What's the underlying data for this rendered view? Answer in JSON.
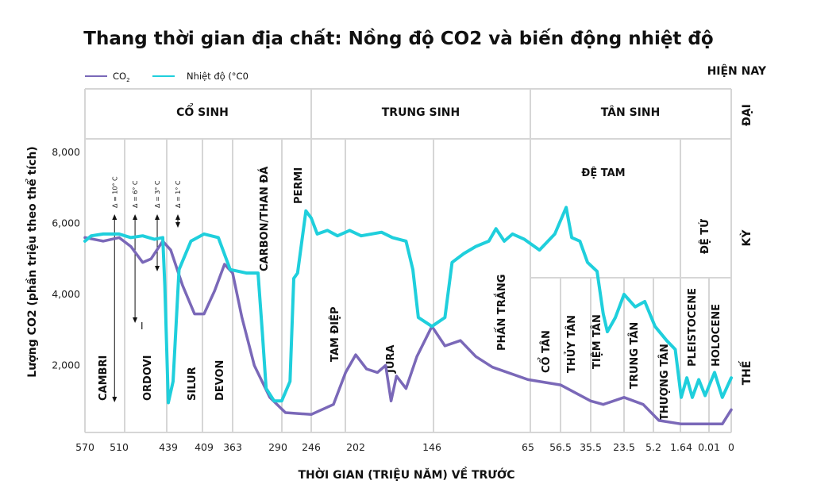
{
  "chart_data": {
    "type": "line",
    "title": "Thang thời gian địa chất: Nồng độ CO2 và biến động nhiệt độ",
    "xlabel": "THỜI GIAN (TRIỆU NĂM) VỀ TRƯỚC",
    "ylabel": "Lượng CO2 (phần triệu theo thể tích)",
    "x_ticks": [
      "570",
      "510",
      "439",
      "409",
      "363",
      "290",
      "246",
      "202",
      "146",
      "65",
      "56.5",
      "35.5",
      "23.5",
      "5.2",
      "1.64",
      "0.01",
      "0"
    ],
    "x_tick_values": [
      570,
      510,
      439,
      409,
      363,
      290,
      246,
      202,
      146,
      65,
      56.5,
      35.5,
      23.5,
      5.2,
      1.64,
      0.01,
      0
    ],
    "x_scale": "non-uniform (piecewise between ticks)",
    "y_ticks": [
      "8,000",
      "6,000",
      "4,000",
      "2,000"
    ],
    "y_tick_values": [
      8000,
      6000,
      4000,
      2000
    ],
    "ylim": [
      0,
      8400
    ],
    "grid": true,
    "legend_placement": "top-left",
    "present_label": "HIỆN NAY",
    "row_labels": {
      "era": "ĐẠI",
      "period": "KỲ",
      "epoch": "THẾ"
    },
    "eras": [
      {
        "label": "CỔ SINH",
        "from": 570,
        "to": 246
      },
      {
        "label": "TRUNG SINH",
        "from": 246,
        "to": 65
      },
      {
        "label": "TÂN SINH",
        "from": 65,
        "to": 0
      }
    ],
    "periods": [
      "CAMBRI",
      "ORDOVI",
      "SILUR",
      "DEVON",
      "CARBON/THAN ĐÁ",
      "PERMI",
      "TAM ĐIỆP",
      "JURA",
      "PHẤN TRẮNG"
    ],
    "cenozoic_periods": {
      "tertiary": "ĐỆ TAM",
      "quaternary": "ĐỆ TỨ"
    },
    "epochs": [
      "CỔ TÂN",
      "THỦY TÂN",
      "TIỆM TÂN",
      "TRUNG TÂN",
      "THƯỢNG TÂN",
      "PLEISTOCENE",
      "HOLOCENE"
    ],
    "annotations": [
      {
        "label": "Δ = 10° C",
        "x": 518
      },
      {
        "label": "Δ = 6° C",
        "x": 487
      },
      {
        "label": "Δ = 3° C",
        "x": 455
      },
      {
        "label": "Δ = 1° C",
        "x": 431
      }
    ],
    "stray_mark": "I",
    "series": [
      {
        "name": "CO",
        "name_sub": "2",
        "color": "#7a68b8",
        "points": [
          [
            570,
            5600
          ],
          [
            538,
            5500
          ],
          [
            510,
            5600
          ],
          [
            493,
            5350
          ],
          [
            476,
            4900
          ],
          [
            464,
            5000
          ],
          [
            447,
            5500
          ],
          [
            437,
            5250
          ],
          [
            427,
            4250
          ],
          [
            417,
            3450
          ],
          [
            409,
            3450
          ],
          [
            392,
            4100
          ],
          [
            376,
            4850
          ],
          [
            363,
            4600
          ],
          [
            348,
            3350
          ],
          [
            328,
            2000
          ],
          [
            303,
            1100
          ],
          [
            280,
            670
          ],
          [
            246,
            620
          ],
          [
            224,
            900
          ],
          [
            212,
            1800
          ],
          [
            202,
            2300
          ],
          [
            194,
            1900
          ],
          [
            186,
            1800
          ],
          [
            180,
            2000
          ],
          [
            176,
            1000
          ],
          [
            172,
            1700
          ],
          [
            165,
            1350
          ],
          [
            157,
            2250
          ],
          [
            146,
            3100
          ],
          [
            135,
            2550
          ],
          [
            122,
            2700
          ],
          [
            109,
            2250
          ],
          [
            95,
            1950
          ],
          [
            65,
            1600
          ],
          [
            56.5,
            1450
          ],
          [
            35.5,
            1000
          ],
          [
            31,
            900
          ],
          [
            23.5,
            1100
          ],
          [
            11.6,
            900
          ],
          [
            4.5,
            450
          ],
          [
            1.64,
            350
          ],
          [
            0.004,
            350
          ],
          [
            0,
            750
          ]
        ]
      },
      {
        "name": "Nhiệt độ (°C0",
        "color": "#1fcfdc",
        "points": [
          [
            570,
            5500
          ],
          [
            559,
            5650
          ],
          [
            538,
            5700
          ],
          [
            510,
            5700
          ],
          [
            493,
            5600
          ],
          [
            476,
            5650
          ],
          [
            459,
            5550
          ],
          [
            447,
            5600
          ],
          [
            444,
            4250
          ],
          [
            439,
            950
          ],
          [
            435,
            1550
          ],
          [
            430,
            4700
          ],
          [
            420,
            5500
          ],
          [
            409,
            5700
          ],
          [
            386,
            5600
          ],
          [
            367,
            4700
          ],
          [
            341,
            4600
          ],
          [
            322,
            4600
          ],
          [
            315,
            2900
          ],
          [
            309,
            1350
          ],
          [
            296,
            1000
          ],
          [
            285,
            1000
          ],
          [
            274,
            1550
          ],
          [
            269,
            4450
          ],
          [
            264,
            4600
          ],
          [
            253,
            6350
          ],
          [
            246,
            6150
          ],
          [
            240,
            5700
          ],
          [
            230,
            5800
          ],
          [
            220,
            5650
          ],
          [
            208,
            5800
          ],
          [
            198,
            5650
          ],
          [
            183,
            5750
          ],
          [
            175,
            5600
          ],
          [
            165,
            5500
          ],
          [
            160,
            4700
          ],
          [
            156,
            3350
          ],
          [
            146,
            3100
          ],
          [
            135,
            3350
          ],
          [
            129,
            4900
          ],
          [
            119,
            5150
          ],
          [
            109,
            5350
          ],
          [
            98,
            5500
          ],
          [
            92,
            5850
          ],
          [
            85,
            5500
          ],
          [
            78,
            5700
          ],
          [
            68,
            5550
          ],
          [
            62,
            5250
          ],
          [
            58,
            5700
          ],
          [
            52.6,
            6450
          ],
          [
            48.7,
            5600
          ],
          [
            43,
            5500
          ],
          [
            37.7,
            4900
          ],
          [
            33.2,
            4650
          ],
          [
            31,
            3450
          ],
          [
            29.5,
            2950
          ],
          [
            26.6,
            3350
          ],
          [
            23.5,
            4000
          ],
          [
            16.6,
            3650
          ],
          [
            10.6,
            3800
          ],
          [
            5,
            3100
          ],
          [
            3.5,
            2700
          ],
          [
            2.4,
            2450
          ],
          [
            1.64,
            1100
          ],
          [
            1.31,
            1650
          ],
          [
            0.99,
            1100
          ],
          [
            0.61,
            1600
          ],
          [
            0.24,
            1150
          ],
          [
            0.0075,
            1800
          ],
          [
            0.004,
            1100
          ],
          [
            0,
            1650
          ]
        ]
      }
    ]
  }
}
